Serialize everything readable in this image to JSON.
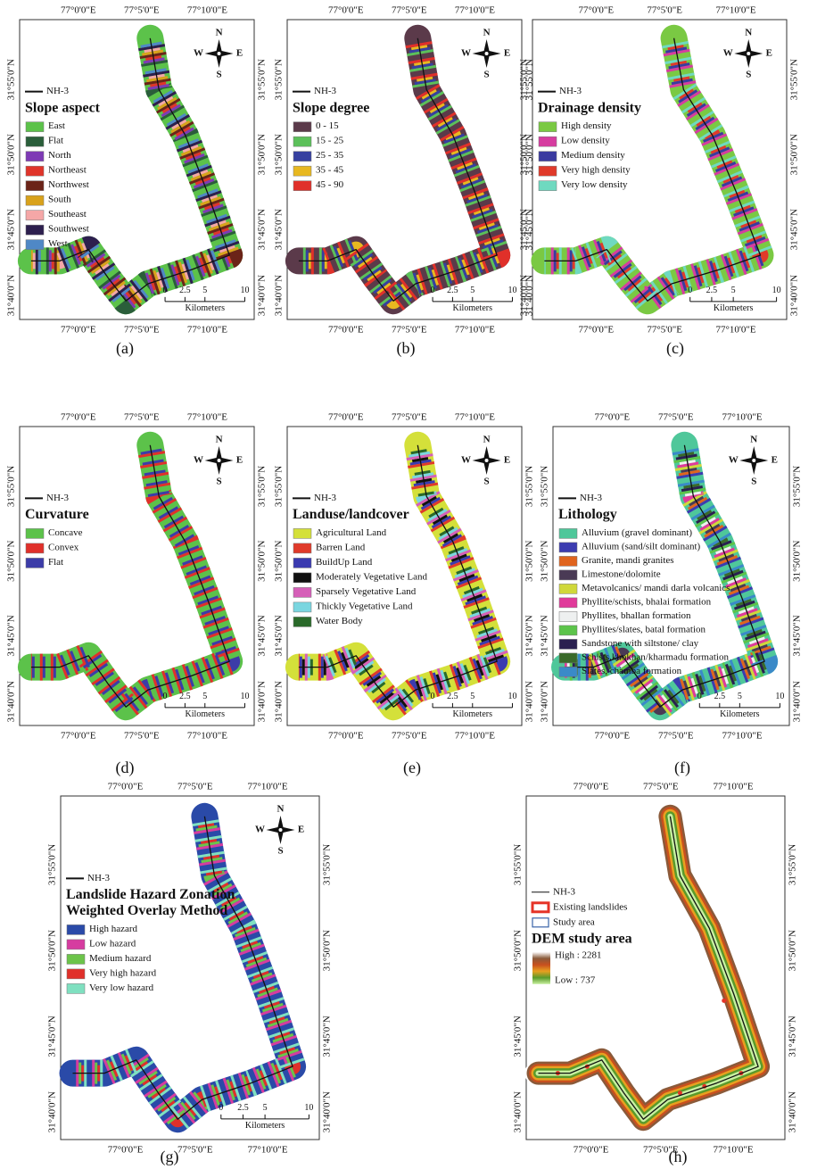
{
  "graticule": {
    "lon": [
      "77°0'0\"E",
      "77°5'0\"E",
      "77°10'0\"E"
    ],
    "lat": [
      "31°55'0\"N",
      "31°50'0\"N",
      "31°45'0\"N",
      "31°40'0\"N"
    ]
  },
  "compass": {
    "n": "N",
    "s": "S",
    "e": "E",
    "w": "W"
  },
  "scale": {
    "ticks": [
      "0",
      "2.5",
      "5",
      "10"
    ],
    "unit": "Kilometers"
  },
  "route_label": "NH-3",
  "panels": [
    {
      "caption": "(a)",
      "legend_title": [
        "Slope aspect"
      ],
      "legend": [
        {
          "label": "East",
          "color": "#5cc24a"
        },
        {
          "label": "Flat",
          "color": "#2a5e3a"
        },
        {
          "label": "North",
          "color": "#7e3ab5"
        },
        {
          "label": "Northeast",
          "color": "#e0342a"
        },
        {
          "label": "Northwest",
          "color": "#6b2418"
        },
        {
          "label": "South",
          "color": "#d9a21b"
        },
        {
          "label": "Southeast",
          "color": "#f5a7a7"
        },
        {
          "label": "Southwest",
          "color": "#2d1f4e"
        },
        {
          "label": "West",
          "color": "#4f88c6"
        }
      ]
    },
    {
      "caption": "(b)",
      "legend_title": [
        "Slope degree"
      ],
      "legend": [
        {
          "label": "0 - 15",
          "color": "#5b3a4a"
        },
        {
          "label": "15 - 25",
          "color": "#5cc05a"
        },
        {
          "label": "25 - 35",
          "color": "#3640a0"
        },
        {
          "label": "35 - 45",
          "color": "#e8b820"
        },
        {
          "label": "45 - 90",
          "color": "#e0302a"
        }
      ]
    },
    {
      "caption": "(c)",
      "legend_title": [
        "Drainage density"
      ],
      "legend": [
        {
          "label": "High density",
          "color": "#7ac943"
        },
        {
          "label": "Low density",
          "color": "#d63ca0"
        },
        {
          "label": "Medium density",
          "color": "#3a3aa0"
        },
        {
          "label": "Very high density",
          "color": "#e03a2a"
        },
        {
          "label": "Very low density",
          "color": "#6fd9c0"
        }
      ]
    },
    {
      "caption": "(d)",
      "legend_title": [
        "Curvature"
      ],
      "legend": [
        {
          "label": "Concave",
          "color": "#5cc24a"
        },
        {
          "label": "Convex",
          "color": "#e0302a"
        },
        {
          "label": "Flat",
          "color": "#3c3ca8"
        }
      ]
    },
    {
      "caption": "(e)",
      "legend_title": [
        "Landuse/landcover"
      ],
      "legend": [
        {
          "label": "Agricultural Land",
          "color": "#d4e03a"
        },
        {
          "label": "Barren Land",
          "color": "#e03a2a"
        },
        {
          "label": "BuildUp Land",
          "color": "#3a3ab0"
        },
        {
          "label": "Moderately Vegetative Land",
          "color": "#111111"
        },
        {
          "label": "Sparsely Vegetative Land",
          "color": "#d65fb8"
        },
        {
          "label": "Thickly Vegetative Land",
          "color": "#7ad6e0"
        },
        {
          "label": "Water Body",
          "color": "#2a6a2a"
        }
      ]
    },
    {
      "caption": "(f)",
      "legend_title": [
        "Lithology"
      ],
      "legend": [
        {
          "label": "Alluvium (gravel dominant)",
          "color": "#4fc79a"
        },
        {
          "label": "Alluvium (sand/silt dominant)",
          "color": "#3c3cb0"
        },
        {
          "label": "Granite, mandi granites",
          "color": "#e0641e"
        },
        {
          "label": "Limestone/dolomite",
          "color": "#4a3a55"
        },
        {
          "label": "Metavolcanics/ mandi darla volcanics",
          "color": "#d0d83a"
        },
        {
          "label": "Phyllite/schists, bhalai formation",
          "color": "#e03a9a"
        },
        {
          "label": "Phyllites, bhallan formation",
          "color": "#eef0f0"
        },
        {
          "label": "Phyllites/slates, batal formation",
          "color": "#5cc44a"
        },
        {
          "label": "Sandstone with siltstone/ clay",
          "color": "#2a2050"
        },
        {
          "label": "Schists.khokhan/kharmadu formation",
          "color": "#3a6a2a"
        },
        {
          "label": "Slates, chamba formation",
          "color": "#3a8ac8"
        }
      ]
    },
    {
      "caption": "(g)",
      "legend_title": [
        "Landslide Hazard Zonation",
        "Weighted Overlay Method"
      ],
      "legend": [
        {
          "label": "High hazard",
          "color": "#2a4aa8"
        },
        {
          "label": "Low hazard",
          "color": "#d63ca0"
        },
        {
          "label": "Medium hazard",
          "color": "#6cc44a"
        },
        {
          "label": "Very high hazard",
          "color": "#e0302a"
        },
        {
          "label": "Very low hazard",
          "color": "#7fe0c0"
        }
      ]
    },
    {
      "caption": "(h)",
      "legend_pre": [
        {
          "label": "Existing landslides",
          "color": "#e53327"
        },
        {
          "label": "Study area",
          "color": "#3a63a8"
        }
      ],
      "legend_title": [
        "DEM study area"
      ],
      "ramp": {
        "high": "High : 2281",
        "low": "Low : 737",
        "colors": [
          "#ffffff",
          "#8a5a3a",
          "#c8501e",
          "#e8a020",
          "#5a9a2a",
          "#c8f0a0"
        ]
      }
    }
  ]
}
